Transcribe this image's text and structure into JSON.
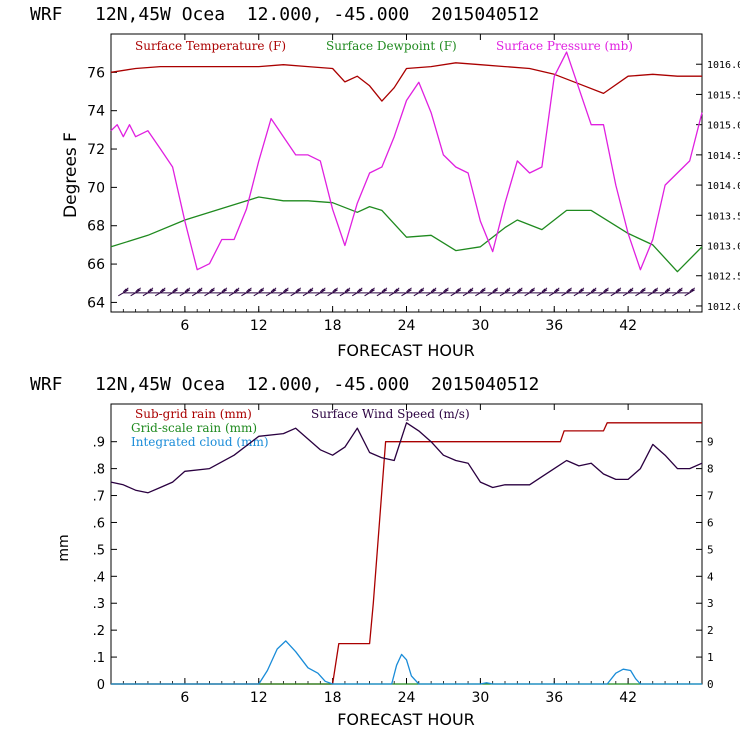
{
  "panels": [
    {
      "header": "WRF   12N,45W Ocea  12.000, -45.000  2015040512",
      "xlabel": "FORECAST HOUR",
      "ylabel_left": "Degrees F",
      "legend": [
        {
          "label": "Surface Temperature (F)",
          "color": "#aa0000"
        },
        {
          "label": "Surface Dewpoint (F)",
          "color": "#1f8a1f"
        },
        {
          "label": "Surface Pressure (mb)",
          "color": "#e020e0"
        }
      ]
    },
    {
      "header": "WRF   12N,45W Ocea  12.000, -45.000  2015040512",
      "xlabel": "FORECAST HOUR",
      "ylabel_left": "mm",
      "legend": [
        {
          "label": "Sub-grid rain (mm)",
          "color": "#aa0000"
        },
        {
          "label": "Surface Wind Speed (m/s)",
          "color": "#2a0040"
        },
        {
          "label": "Grid-scale rain (mm)",
          "color": "#1f8a1f"
        },
        {
          "label": "Integrated cloud (mm)",
          "color": "#1a8cd8"
        }
      ]
    }
  ],
  "chart_data": [
    {
      "type": "line",
      "xlim": [
        0,
        48
      ],
      "xticks": [
        "6",
        "12",
        "18",
        "24",
        "30",
        "36",
        "42"
      ],
      "ylim_left": [
        63.5,
        78
      ],
      "yticks_left": [
        "64",
        "66",
        "68",
        "70",
        "72",
        "74",
        "76"
      ],
      "ylim_right": [
        1011.9,
        1016.5
      ],
      "yticks_right": [
        "1012.0",
        "1012.5",
        "1013.0",
        "1013.5",
        "1014.0",
        "1014.5",
        "1015.0",
        "1015.5",
        "1016.0"
      ],
      "series": [
        {
          "name": "Surface Temperature (F)",
          "axis": "left",
          "color": "#aa0000",
          "x": [
            0,
            2,
            4,
            6,
            8,
            10,
            12,
            14,
            16,
            18,
            19,
            20,
            21,
            22,
            23,
            24,
            26,
            28,
            30,
            32,
            34,
            36,
            38,
            40,
            42,
            44,
            46,
            48
          ],
          "y": [
            76.0,
            76.2,
            76.3,
            76.3,
            76.3,
            76.3,
            76.3,
            76.4,
            76.3,
            76.2,
            75.5,
            75.8,
            75.3,
            74.5,
            75.2,
            76.2,
            76.3,
            76.5,
            76.4,
            76.3,
            76.2,
            75.9,
            75.4,
            74.9,
            75.8,
            75.9,
            75.8,
            75.8
          ]
        },
        {
          "name": "Surface Dewpoint (F)",
          "axis": "left",
          "color": "#1f8a1f",
          "x": [
            0,
            3,
            6,
            9,
            12,
            14,
            16,
            18,
            20,
            21,
            22,
            24,
            26,
            28,
            30,
            32,
            33,
            35,
            37,
            39,
            42,
            44,
            46,
            48
          ],
          "y": [
            66.9,
            67.5,
            68.3,
            68.9,
            69.5,
            69.3,
            69.3,
            69.2,
            68.7,
            69.0,
            68.8,
            67.4,
            67.5,
            66.7,
            66.9,
            67.9,
            68.3,
            67.8,
            68.8,
            68.8,
            67.6,
            67.0,
            65.6,
            66.9
          ]
        },
        {
          "name": "Surface Pressure (mb)",
          "axis": "right",
          "color": "#e020e0",
          "x": [
            0,
            0.5,
            1,
            1.5,
            2,
            3,
            4,
            5,
            6,
            7,
            8,
            9,
            10,
            11,
            12,
            13,
            14,
            15,
            16,
            17,
            18,
            19,
            20,
            21,
            22,
            23,
            24,
            25,
            26,
            27,
            28,
            29,
            30,
            31,
            32,
            33,
            34,
            35,
            36,
            37,
            38,
            39,
            40,
            41,
            42,
            43,
            44,
            45,
            46,
            47,
            48
          ],
          "y": [
            1014.9,
            1015.0,
            1014.8,
            1015.0,
            1014.8,
            1014.9,
            1014.6,
            1014.3,
            1013.4,
            1012.6,
            1012.7,
            1013.1,
            1013.1,
            1013.6,
            1014.4,
            1015.1,
            1014.8,
            1014.5,
            1014.5,
            1014.4,
            1013.6,
            1013.0,
            1013.7,
            1014.2,
            1014.3,
            1014.8,
            1015.4,
            1015.7,
            1015.2,
            1014.5,
            1014.3,
            1014.2,
            1013.4,
            1012.9,
            1013.7,
            1014.4,
            1014.2,
            1014.3,
            1015.8,
            1016.2,
            1015.6,
            1015.0,
            1015.0,
            1014.0,
            1013.2,
            1012.6,
            1013.1,
            1014.0,
            1014.2,
            1014.4,
            1015.2
          ]
        },
        {
          "name": "Wind barbs",
          "axis": "left",
          "color": "#2a0040",
          "x": [
            1,
            2,
            3,
            4,
            5,
            6,
            7,
            8,
            9,
            10,
            11,
            12,
            13,
            14,
            15,
            16,
            17,
            18,
            19,
            20,
            21,
            22,
            23,
            24,
            25,
            26,
            27,
            28,
            29,
            30,
            31,
            32,
            33,
            34,
            35,
            36,
            37,
            38,
            39,
            40,
            41,
            42,
            43,
            44,
            45,
            46,
            47
          ],
          "y": [
            64.5,
            64.5,
            64.5,
            64.5,
            64.5,
            64.5,
            64.5,
            64.5,
            64.5,
            64.5,
            64.5,
            64.5,
            64.5,
            64.5,
            64.5,
            64.5,
            64.5,
            64.5,
            64.5,
            64.5,
            64.5,
            64.5,
            64.5,
            64.5,
            64.5,
            64.5,
            64.5,
            64.5,
            64.5,
            64.5,
            64.5,
            64.5,
            64.5,
            64.5,
            64.5,
            64.5,
            64.5,
            64.5,
            64.5,
            64.5,
            64.5,
            64.5,
            64.5,
            64.5,
            64.5,
            64.5,
            64.5
          ]
        }
      ]
    },
    {
      "type": "line",
      "xlim": [
        0,
        48
      ],
      "xticks": [
        "6",
        "12",
        "18",
        "24",
        "30",
        "36",
        "42"
      ],
      "ylim_left": [
        0,
        1.04
      ],
      "yticks_left": [
        "0",
        ".1",
        ".2",
        ".3",
        ".4",
        ".5",
        ".6",
        ".7",
        ".8",
        ".9"
      ],
      "ylim_right": [
        0,
        10.4
      ],
      "yticks_right": [
        "0",
        "1",
        "2",
        "3",
        "4",
        "5",
        "6",
        "7",
        "8",
        "9"
      ],
      "series": [
        {
          "name": "Sub-grid rain (mm)",
          "axis": "left",
          "color": "#aa0000",
          "x": [
            0,
            18,
            18.5,
            21,
            21.3,
            22.3,
            23,
            36.5,
            36.8,
            40,
            40.3,
            48
          ],
          "y": [
            0,
            0,
            0.15,
            0.15,
            0.3,
            0.9,
            0.9,
            0.9,
            0.94,
            0.94,
            0.97,
            0.97
          ]
        },
        {
          "name": "Surface Wind Speed (m/s)",
          "axis": "right",
          "color": "#2a0040",
          "x": [
            0,
            1,
            2,
            3,
            4,
            5,
            6,
            8,
            10,
            12,
            14,
            15,
            16,
            17,
            18,
            19,
            20,
            21,
            22,
            23,
            24,
            25,
            26,
            27,
            28,
            29,
            30,
            31,
            32,
            33,
            34,
            35,
            36,
            37,
            38,
            39,
            40,
            41,
            42,
            43,
            44,
            45,
            46,
            47,
            48
          ],
          "y": [
            7.5,
            7.4,
            7.2,
            7.1,
            7.3,
            7.5,
            7.9,
            8.0,
            8.5,
            9.2,
            9.3,
            9.5,
            9.1,
            8.7,
            8.5,
            8.8,
            9.5,
            8.6,
            8.4,
            8.3,
            9.7,
            9.4,
            9.0,
            8.5,
            8.3,
            8.2,
            7.5,
            7.3,
            7.4,
            7.4,
            7.4,
            7.7,
            8.0,
            8.3,
            8.1,
            8.2,
            7.8,
            7.6,
            7.6,
            8.0,
            8.9,
            8.5,
            8.0,
            8.0,
            8.2
          ]
        },
        {
          "name": "Grid-scale rain (mm)",
          "axis": "left",
          "color": "#1f8a1f",
          "x": [
            0,
            48
          ],
          "y": [
            0,
            0
          ]
        },
        {
          "name": "Integrated cloud (mm)",
          "axis": "left",
          "color": "#1a8cd8",
          "x": [
            0,
            12,
            12.7,
            13.5,
            14.2,
            15,
            16,
            16.8,
            17.4,
            18,
            22.8,
            23.2,
            23.6,
            24,
            24.4,
            25,
            30,
            30.5,
            31,
            38,
            40.3,
            41,
            41.6,
            42.2,
            42.6,
            43,
            48
          ],
          "y": [
            0,
            0,
            0.05,
            0.13,
            0.16,
            0.12,
            0.06,
            0.04,
            0.01,
            0,
            0,
            0.07,
            0.11,
            0.09,
            0.03,
            0,
            0,
            0.005,
            0,
            0,
            0,
            0.04,
            0.055,
            0.05,
            0.02,
            0,
            0
          ]
        }
      ]
    }
  ]
}
